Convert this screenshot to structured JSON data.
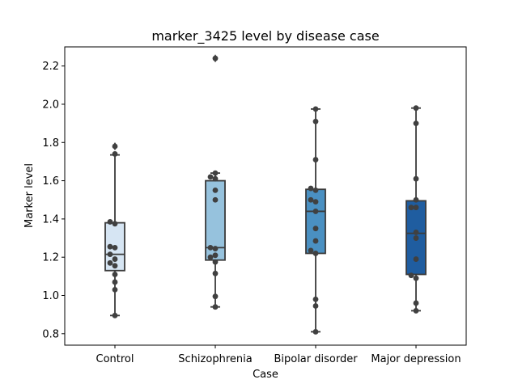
{
  "chart_data": {
    "type": "box",
    "title": "marker_3425 level by disease case",
    "xlabel": "Case",
    "ylabel": "Marker level",
    "ylim": [
      0.74,
      2.3
    ],
    "yticks": [
      "0.8",
      "1.0",
      "1.2",
      "1.4",
      "1.6",
      "1.8",
      "2.0",
      "2.2"
    ],
    "grid": false,
    "categories": [
      "Control",
      "Schizophrenia",
      "Bipolar disorder",
      "Major depression"
    ],
    "colors": [
      "#d6e5f3",
      "#96c2dd",
      "#4a90c2",
      "#1f5da0"
    ],
    "boxes": [
      {
        "q1": 1.13,
        "median": 1.215,
        "q3": 1.38,
        "whisker_low": 0.895,
        "whisker_high": 1.735,
        "outliers": [
          1.78
        ]
      },
      {
        "q1": 1.185,
        "median": 1.25,
        "q3": 1.6,
        "whisker_low": 0.94,
        "whisker_high": 1.64,
        "outliers": [
          2.24
        ]
      },
      {
        "q1": 1.22,
        "median": 1.44,
        "q3": 1.555,
        "whisker_low": 0.81,
        "whisker_high": 1.975,
        "outliers": []
      },
      {
        "q1": 1.11,
        "median": 1.325,
        "q3": 1.495,
        "whisker_low": 0.92,
        "whisker_high": 1.98,
        "outliers": []
      }
    ],
    "points": [
      [
        0.895,
        1.03,
        1.07,
        1.11,
        1.155,
        1.17,
        1.19,
        1.215,
        1.25,
        1.255,
        1.375,
        1.385,
        1.74,
        1.78
      ],
      [
        0.94,
        0.995,
        1.115,
        1.175,
        1.2,
        1.21,
        1.245,
        1.25,
        1.5,
        1.55,
        1.61,
        1.62,
        1.64,
        2.24
      ],
      [
        0.81,
        0.945,
        0.98,
        1.22,
        1.235,
        1.285,
        1.35,
        1.44,
        1.49,
        1.5,
        1.55,
        1.56,
        1.71,
        1.91,
        1.975
      ],
      [
        0.92,
        0.96,
        1.09,
        1.105,
        1.19,
        1.3,
        1.33,
        1.46,
        1.46,
        1.5,
        1.61,
        1.9,
        1.98
      ]
    ]
  }
}
